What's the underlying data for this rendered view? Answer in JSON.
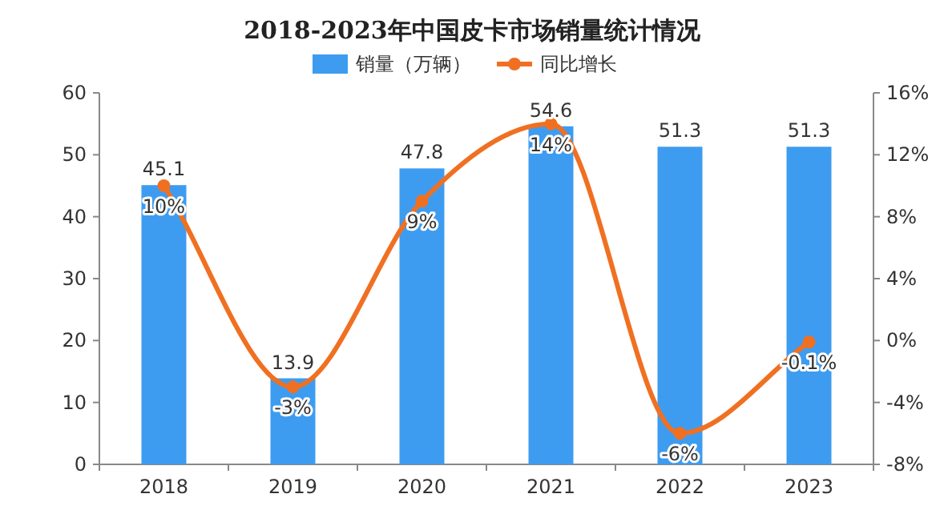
{
  "chart_data": {
    "type": "bar",
    "title": "2018-2023年中国皮卡市场销量统计情况",
    "categories": [
      "2018",
      "2019",
      "2020",
      "2021",
      "2022",
      "2023"
    ],
    "series": [
      {
        "name": "销量（万辆）",
        "color": "#3d9cf0",
        "values": [
          45.1,
          13.9,
          47.8,
          54.6,
          51.3,
          51.3
        ],
        "value_labels": [
          "45.1",
          "13.9",
          "47.8",
          "54.6",
          "51.3",
          "51.3"
        ]
      },
      {
        "name": "同比增长",
        "type": "line",
        "axis": "y2",
        "color": "#f07022",
        "marker": "circle",
        "values": [
          10,
          -3,
          9,
          14,
          -6,
          -0.1
        ],
        "value_labels": [
          "10%",
          "-3%",
          "9%",
          "14%",
          "-6%",
          "-0.1%"
        ]
      }
    ],
    "ylim": [
      0,
      60
    ],
    "yticks": [
      0,
      10,
      20,
      30,
      40,
      50,
      60
    ],
    "y2lim": [
      -8,
      16
    ],
    "y2ticks": [
      {
        "value": -8,
        "label": "-8%"
      },
      {
        "value": -4,
        "label": "-4%"
      },
      {
        "value": 0,
        "label": "0%"
      },
      {
        "value": 4,
        "label": "4%"
      },
      {
        "value": 8,
        "label": "8%"
      },
      {
        "value": 12,
        "label": "12%"
      },
      {
        "value": 16,
        "label": "16%"
      }
    ],
    "legend": "top"
  }
}
